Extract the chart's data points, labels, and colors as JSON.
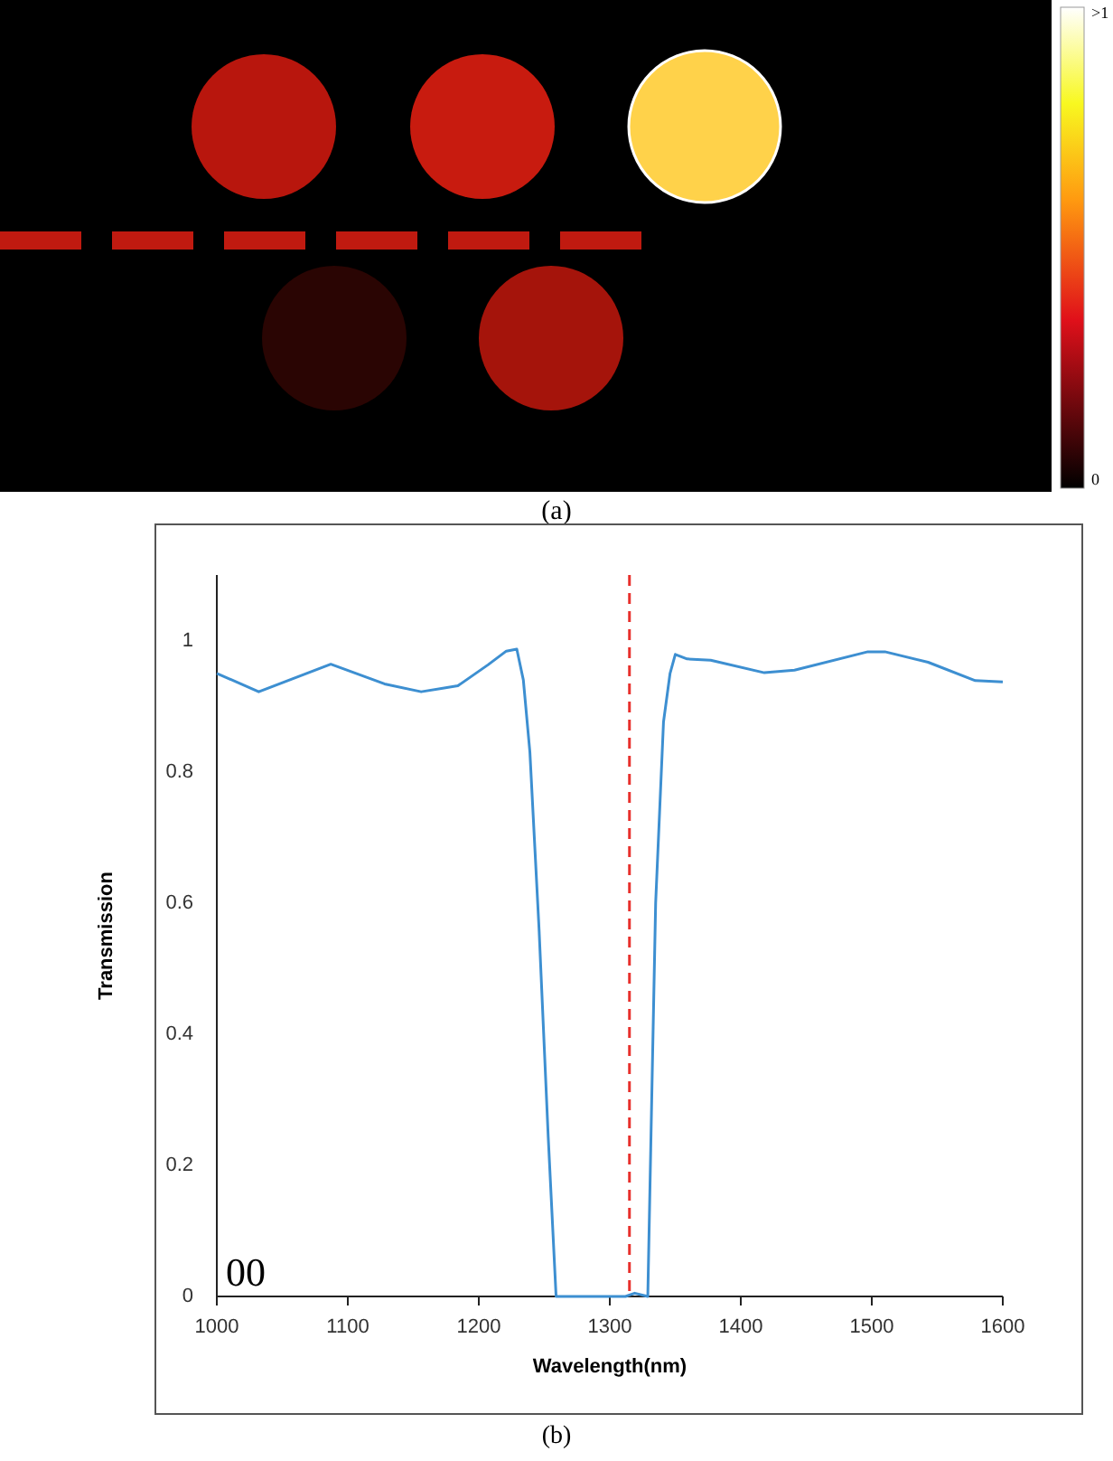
{
  "chart_data": {
    "type": "line",
    "xlabel": "Wavelength(nm)",
    "ylabel": "Transmission",
    "annotations": [
      "(a)",
      "0",
      ">1",
      "00",
      "(b)"
    ],
    "series": [
      {
        "color": "#3d8fd1",
        "x": [
          1000,
          1032,
          1087,
          1128,
          1156,
          1184,
          1207,
          1221,
          1229,
          1234,
          1239,
          1246,
          1253,
          1259,
          1290,
          1312,
          1319,
          1329,
          1335,
          1341,
          1346,
          1350,
          1359,
          1377,
          1418,
          1441,
          1497,
          1510,
          1543,
          1579,
          1600
        ],
        "values": [
          0.95,
          0.922,
          0.964,
          0.934,
          0.922,
          0.931,
          0.963,
          0.984,
          0.987,
          0.94,
          0.83,
          0.56,
          0.243,
          0,
          0,
          0,
          0.005,
          0,
          0.6,
          0.876,
          0.95,
          0.979,
          0.972,
          0.97,
          0.951,
          0.955,
          0.983,
          0.983,
          0.967,
          0.939,
          0.937
        ]
      }
    ],
    "xlim": [
      1000,
      1600
    ],
    "xticks": [
      1000,
      1100,
      1200,
      1300,
      1400,
      1500,
      1600
    ],
    "ylim": [
      0,
      1.1
    ],
    "yticks": [
      0,
      0.2,
      0.4,
      0.6,
      0.8,
      1
    ],
    "ref_lines": [
      {
        "axis": "x",
        "value": 1315,
        "color": "#e8302c",
        "line_style": "dashed"
      }
    ],
    "grid": false,
    "marker": "none",
    "line_style": "solid"
  }
}
